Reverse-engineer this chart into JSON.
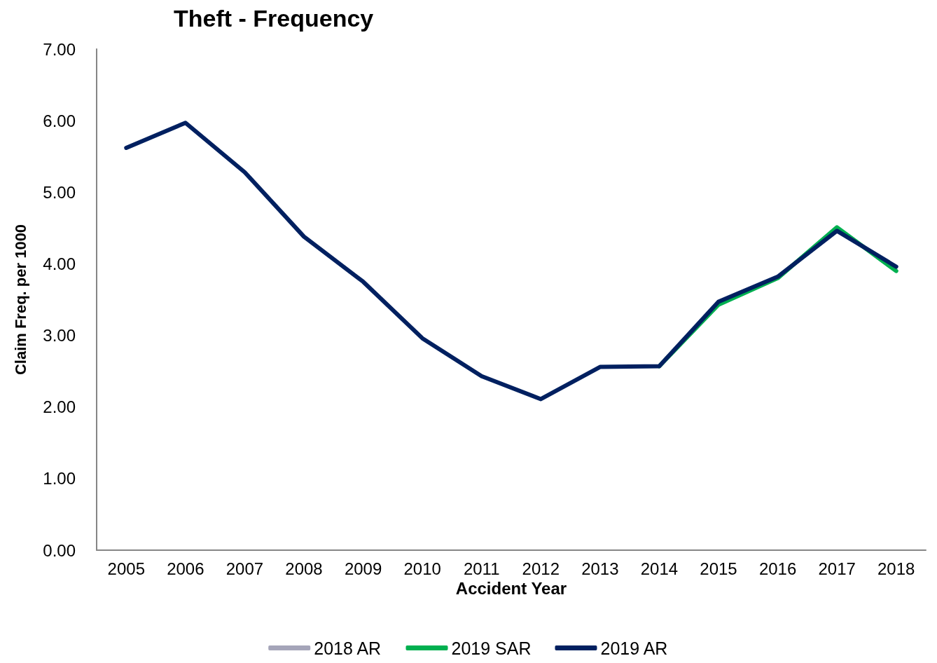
{
  "chart_data": {
    "type": "line",
    "title": "Theft - Frequency",
    "xlabel": "Accident Year",
    "ylabel": "Claim Freq. per 1000",
    "categories": [
      "2005",
      "2006",
      "2007",
      "2008",
      "2009",
      "2010",
      "2011",
      "2012",
      "2013",
      "2014",
      "2015",
      "2016",
      "2017",
      "2018"
    ],
    "series": [
      {
        "name": "2018 AR",
        "color": "#a5a5b9",
        "values": [
          null,
          null,
          null,
          null,
          null,
          null,
          null,
          null,
          null,
          null,
          null,
          null,
          null,
          null
        ]
      },
      {
        "name": "2019 SAR",
        "color": "#00b050",
        "values": [
          null,
          null,
          null,
          null,
          null,
          null,
          null,
          null,
          null,
          2.57,
          3.43,
          3.8,
          4.51,
          3.9
        ]
      },
      {
        "name": "2019 AR",
        "color": "#002060",
        "values": [
          5.62,
          5.97,
          5.28,
          4.38,
          3.75,
          2.96,
          2.43,
          2.11,
          2.56,
          2.57,
          3.47,
          3.82,
          4.46,
          3.96
        ]
      }
    ],
    "ylim": [
      0,
      7
    ],
    "yticks": [
      {
        "value": 0,
        "label": "0.00"
      },
      {
        "value": 1,
        "label": "1.00"
      },
      {
        "value": 2,
        "label": "2.00"
      },
      {
        "value": 3,
        "label": "3.00"
      },
      {
        "value": 4,
        "label": "4.00"
      },
      {
        "value": 5,
        "label": "5.00"
      },
      {
        "value": 6,
        "label": "6.00"
      },
      {
        "value": 7,
        "label": "7.00"
      }
    ],
    "grid": false,
    "legend": "bottom",
    "marker": "none",
    "line_style": "solid"
  }
}
